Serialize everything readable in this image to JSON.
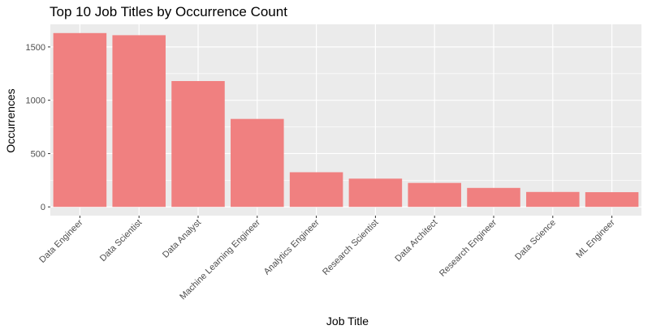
{
  "chart_data": {
    "type": "bar",
    "title": "Top 10 Job Titles by Occurrence Count",
    "xlabel": "Job Title",
    "ylabel": "Occurrences",
    "categories": [
      "Data Engineer",
      "Data Scientist",
      "Data Analyst",
      "Machine Learning Engineer",
      "Analytics Engineer",
      "Research Scientist",
      "Data Architect",
      "Research Engineer",
      "Data Science",
      "ML Engineer"
    ],
    "values": [
      1630,
      1610,
      1180,
      825,
      325,
      265,
      225,
      178,
      140,
      138
    ],
    "ylim": [
      -82,
      1712
    ],
    "yticks": [
      0,
      500,
      1000,
      1500
    ],
    "ytick_labels": [
      "0",
      "500",
      "1000",
      "1500"
    ],
    "grid": true,
    "legend": "none",
    "colors": {
      "bar": "#F08080",
      "panel": "#EBEBEB",
      "grid": "#FFFFFF",
      "tick_text": "#4D4D4D",
      "tick_mark": "#333333"
    }
  }
}
